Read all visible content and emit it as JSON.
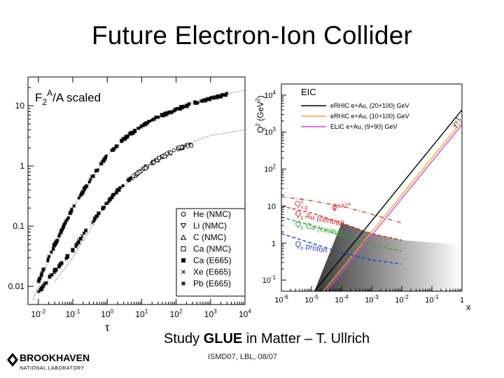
{
  "slide": {
    "title": "Future Electron-Ion Collider",
    "subtitle_prefix": "Study ",
    "subtitle_bold": "GLUE",
    "subtitle_suffix": " in Matter – T. Ullrich",
    "footer": "ISMD07, LBL, 08/07",
    "logo_name": "BROOKHAVEN",
    "logo_sub": "NATIONAL LABORATORY"
  },
  "chart_data": [
    {
      "type": "scatter",
      "title": "F2A/A  scaled",
      "xlabel": "τ",
      "ylabel": "",
      "xscale": "log",
      "yscale": "log",
      "xlim": [
        0.005,
        10000
      ],
      "ylim": [
        0.005,
        30
      ],
      "x_ticks": [
        "10-2",
        "10-1",
        "100",
        "101",
        "102",
        "103",
        "104"
      ],
      "y_ticks": [
        "0.01",
        "0.1",
        "1",
        "10"
      ],
      "legend_position": "bottom-right",
      "series": [
        {
          "name": "He (NMC)",
          "marker": "circle"
        },
        {
          "name": "Li (NMC)",
          "marker": "triangle-down"
        },
        {
          "name": "C (NMC)",
          "marker": "triangle-up"
        },
        {
          "name": "Ca (NMC)",
          "marker": "square"
        },
        {
          "name": "Ca (E665)",
          "marker": "filled-square"
        },
        {
          "name": "Xe (E665)",
          "marker": "x"
        },
        {
          "name": "Pb (E665)",
          "marker": "star"
        }
      ],
      "upper_band": [
        [
          0.01,
          0.012
        ],
        [
          0.02,
          0.03
        ],
        [
          0.05,
          0.09
        ],
        [
          0.1,
          0.2
        ],
        [
          0.3,
          0.55
        ],
        [
          1,
          1.5
        ],
        [
          3,
          2.8
        ],
        [
          10,
          4.6
        ],
        [
          30,
          6.5
        ],
        [
          100,
          8.6
        ],
        [
          300,
          11
        ],
        [
          1000,
          13
        ],
        [
          3000,
          15.5
        ]
      ],
      "lower_band": [
        [
          0.01,
          0.008
        ],
        [
          0.03,
          0.018
        ],
        [
          0.1,
          0.04
        ],
        [
          0.3,
          0.1
        ],
        [
          1,
          0.25
        ],
        [
          3,
          0.5
        ],
        [
          10,
          0.85
        ],
        [
          30,
          1.3
        ],
        [
          100,
          1.9
        ],
        [
          300,
          2.3
        ]
      ],
      "upper_curve": [
        [
          0.007,
          0.006
        ],
        [
          0.02,
          0.028
        ],
        [
          0.1,
          0.2
        ],
        [
          1,
          1.5
        ],
        [
          10,
          4.8
        ],
        [
          100,
          9
        ],
        [
          1000,
          14
        ],
        [
          10000,
          18
        ]
      ],
      "lower_curve": [
        [
          0.03,
          0.012
        ],
        [
          0.1,
          0.03
        ],
        [
          1,
          0.25
        ],
        [
          10,
          0.85
        ],
        [
          100,
          2
        ],
        [
          1000,
          3.2
        ],
        [
          10000,
          4
        ]
      ]
    },
    {
      "type": "line",
      "title": "EIC",
      "xlabel": "x",
      "ylabel": "Q2 (GeV2)",
      "xscale": "log",
      "yscale": "log",
      "xlim": [
        1e-06,
        1
      ],
      "ylim": [
        0.05,
        20000
      ],
      "x_ticks": [
        "10-6",
        "10-5",
        "10-4",
        "10-3",
        "10-2",
        "10-1",
        "1"
      ],
      "y_ticks": [
        "10-1",
        "1",
        "10",
        "102",
        "103",
        "104"
      ],
      "legend_position": "top-left",
      "series": [
        {
          "name": "eRHIC e+Au, (20+100) GeV",
          "color": "#000000"
        },
        {
          "name": "eRHIC e+Au, (10+100) GeV",
          "color": "#e8b020"
        },
        {
          "name": "ELIC e+Au, (9+90) GeV",
          "color": "#e040e0"
        }
      ],
      "kinematic_limits": [
        {
          "color": "#000000",
          "points": [
            [
              1.25e-05,
              0.05
            ],
            [
              1,
              4000
            ]
          ]
        },
        {
          "color": "#e8b020",
          "points": [
            [
              2.5e-05,
              0.05
            ],
            [
              1,
              2000
            ]
          ]
        },
        {
          "color": "#e040e0",
          "points": [
            [
              3.1e-05,
              0.05
            ],
            [
              1,
              1600
            ]
          ]
        }
      ],
      "y_equals_1_label": "y=1",
      "saturation_curves": [
        {
          "label": "Q2s,g",
          "color": "#d04040",
          "style": "dashdot",
          "points": [
            [
              1e-06,
              18
            ],
            [
              1e-05,
              14
            ],
            [
              0.0001,
              10
            ],
            [
              0.001,
              6
            ],
            [
              0.01,
              3.5
            ]
          ]
        },
        {
          "label": "Qs Au (central)",
          "color": "#e02020",
          "style": "solid",
          "points": [
            [
              1e-06,
              10
            ],
            [
              1e-05,
              6.5
            ],
            [
              0.0001,
              3.5
            ],
            [
              0.001,
              1.8
            ],
            [
              0.01,
              1.2
            ]
          ]
        },
        {
          "label": "Qs Ca (central)",
          "color": "#30a030",
          "style": "solid",
          "points": [
            [
              1e-06,
              5
            ],
            [
              1e-05,
              3
            ],
            [
              0.0001,
              1.6
            ],
            [
              0.001,
              0.9
            ],
            [
              0.01,
              0.6
            ]
          ]
        },
        {
          "label": "Qs proton",
          "color": "#2040d0",
          "style": "solid",
          "points": [
            [
              1e-06,
              1.8
            ],
            [
              1e-05,
              1
            ],
            [
              0.0001,
              0.55
            ],
            [
              0.001,
              0.35
            ],
            [
              0.01,
              0.27
            ]
          ]
        }
      ],
      "annotation": "xA1/4"
    }
  ]
}
